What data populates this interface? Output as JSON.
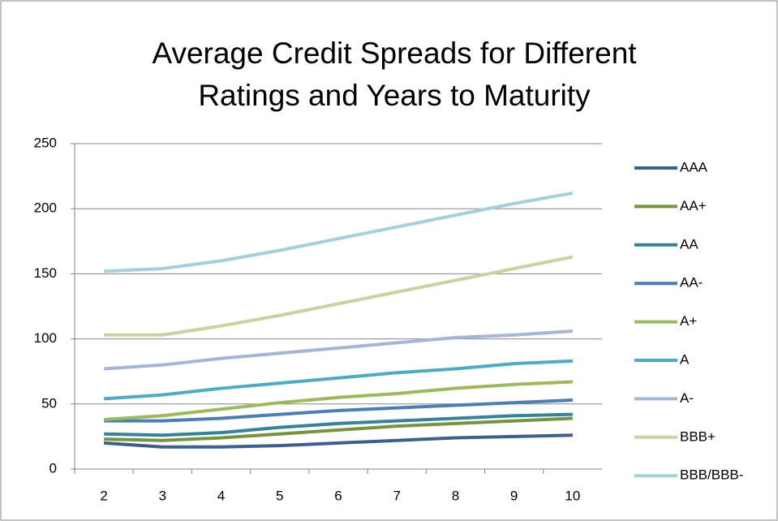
{
  "chart_data": {
    "type": "line",
    "title": "Average Credit Spreads for Different Ratings and Years to Maturity",
    "x": [
      2,
      3,
      4,
      5,
      6,
      7,
      8,
      9,
      10
    ],
    "xlim": [
      1.5,
      10.5
    ],
    "xticks": [
      2,
      3,
      4,
      5,
      6,
      7,
      8,
      9,
      10
    ],
    "ylim": [
      0,
      250
    ],
    "yticks": [
      0,
      50,
      100,
      150,
      200,
      250
    ],
    "grid": true,
    "legend": "right",
    "series": [
      {
        "name": "AAA",
        "color": "#3b5f91",
        "values": [
          20,
          17,
          17,
          18,
          20,
          22,
          24,
          25,
          26
        ]
      },
      {
        "name": "AA+",
        "color": "#77933c",
        "values": [
          23,
          22,
          24,
          27,
          30,
          33,
          35,
          37,
          39
        ]
      },
      {
        "name": "AA",
        "color": "#31849b",
        "values": [
          27,
          26,
          28,
          32,
          35,
          37,
          39,
          41,
          42
        ]
      },
      {
        "name": "AA-",
        "color": "#4a7ebb",
        "values": [
          37,
          37,
          39,
          42,
          45,
          47,
          49,
          51,
          53
        ]
      },
      {
        "name": "A+",
        "color": "#9bbb59",
        "values": [
          38,
          41,
          46,
          51,
          55,
          58,
          62,
          65,
          67
        ]
      },
      {
        "name": "A",
        "color": "#4bacc6",
        "values": [
          54,
          57,
          62,
          66,
          70,
          74,
          77,
          81,
          83
        ]
      },
      {
        "name": "A-",
        "color": "#a5b5d9",
        "values": [
          77,
          80,
          85,
          89,
          93,
          97,
          101,
          103,
          106
        ]
      },
      {
        "name": "BBB+",
        "color": "#c3d69b",
        "values": [
          103,
          103,
          110,
          118,
          127,
          136,
          145,
          154,
          163
        ]
      },
      {
        "name": "BBB/BBB-",
        "color": "#a5cfdd",
        "values": [
          152,
          154,
          160,
          168,
          177,
          186,
          195,
          204,
          212
        ]
      }
    ]
  }
}
